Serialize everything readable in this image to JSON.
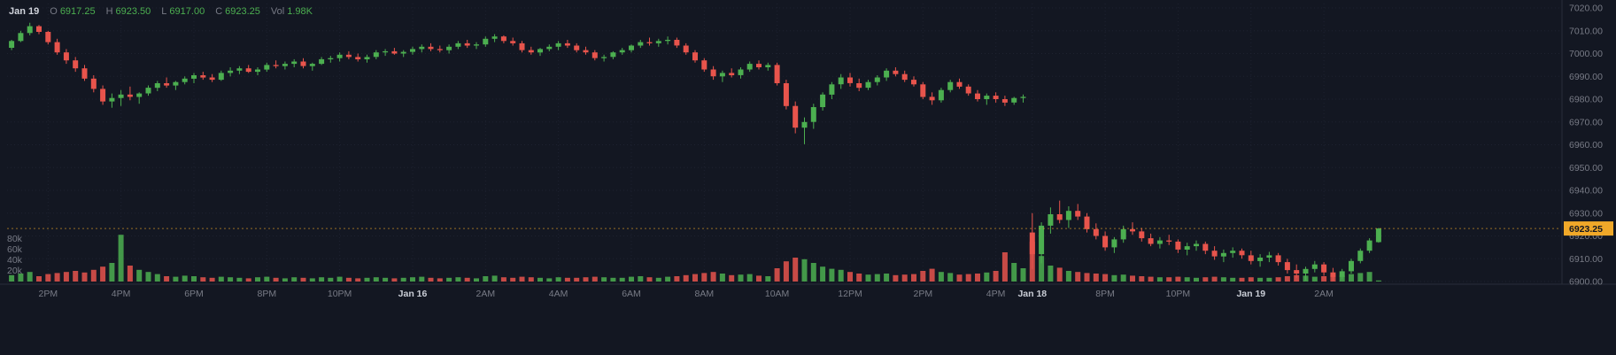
{
  "colors": {
    "bg": "#131722",
    "up": "#4caf50",
    "down": "#e8544c",
    "grid": "#1e2230",
    "axis_text": "#787b86",
    "date_text": "#c9cdd6",
    "separator": "#2a2e39",
    "last_price_bg": "#f0a829",
    "last_price_text": "#131722"
  },
  "legend": {
    "date": "Jan 19",
    "open_label": "O",
    "open_value": "6917.25",
    "high_label": "H",
    "high_value": "6923.50",
    "low_label": "L",
    "low_value": "6917.00",
    "close_label": "C",
    "close_value": "6923.25",
    "vol_label": "Vol",
    "vol_value": "1.98K"
  },
  "price_axis": {
    "ticks": [
      "7020.00",
      "7010.00",
      "7000.00",
      "6990.00",
      "6980.00",
      "6970.00",
      "6960.00",
      "6950.00",
      "6940.00",
      "6930.00",
      "6920.00",
      "6910.00",
      "6900.00"
    ],
    "last_price_label": "6923.25",
    "last_price_value": 6923.25
  },
  "volume_axis": {
    "ticks": [
      {
        "label": "80k",
        "value": 80
      },
      {
        "label": "60k",
        "value": 60
      },
      {
        "label": "40k",
        "value": 40
      },
      {
        "label": "20k",
        "value": 20
      }
    ]
  },
  "chart_data": {
    "type": "candlestick",
    "title": "",
    "ylim": [
      6900,
      7020
    ],
    "volume_unit": "thousands",
    "columns": [
      "open",
      "high",
      "low",
      "close",
      "volume_k"
    ],
    "time_labels": [
      {
        "text": "2PM",
        "index": 4,
        "is_date": false
      },
      {
        "text": "4PM",
        "index": 12,
        "is_date": false
      },
      {
        "text": "6PM",
        "index": 20,
        "is_date": false
      },
      {
        "text": "8PM",
        "index": 28,
        "is_date": false
      },
      {
        "text": "10PM",
        "index": 36,
        "is_date": false
      },
      {
        "text": "Jan 16",
        "index": 44,
        "is_date": true
      },
      {
        "text": "2AM",
        "index": 52,
        "is_date": false
      },
      {
        "text": "4AM",
        "index": 60,
        "is_date": false
      },
      {
        "text": "6AM",
        "index": 68,
        "is_date": false
      },
      {
        "text": "8AM",
        "index": 76,
        "is_date": false
      },
      {
        "text": "10AM",
        "index": 84,
        "is_date": false
      },
      {
        "text": "12PM",
        "index": 92,
        "is_date": false
      },
      {
        "text": "2PM",
        "index": 100,
        "is_date": false
      },
      {
        "text": "4PM",
        "index": 108,
        "is_date": false
      },
      {
        "text": "Jan 18",
        "index": 112,
        "is_date": true
      },
      {
        "text": "8PM",
        "index": 120,
        "is_date": false
      },
      {
        "text": "10PM",
        "index": 128,
        "is_date": false
      },
      {
        "text": "Jan 19",
        "index": 136,
        "is_date": true
      },
      {
        "text": "2AM",
        "index": 144,
        "is_date": false
      }
    ],
    "candles": [
      [
        7002.5,
        7006,
        7001.5,
        7005.5,
        12
      ],
      [
        7005.5,
        7010,
        7005,
        7009,
        15
      ],
      [
        7009,
        7013.5,
        7008,
        7012,
        18
      ],
      [
        7012,
        7012.5,
        7008.5,
        7009.5,
        10
      ],
      [
        7009.5,
        7010,
        7004,
        7005,
        14
      ],
      [
        7005,
        7006.5,
        6999.5,
        7000.5,
        16
      ],
      [
        7000.5,
        7002,
        6995.5,
        6997,
        18
      ],
      [
        6997,
        6998.5,
        6992,
        6993.5,
        20
      ],
      [
        6993.5,
        6995,
        6988,
        6989,
        17
      ],
      [
        6989,
        6990.5,
        6983,
        6984.5,
        22
      ],
      [
        6984.5,
        6986,
        6977.5,
        6979,
        28
      ],
      [
        6979,
        6982.5,
        6976.25,
        6980.5,
        35
      ],
      [
        6980.5,
        6984,
        6977,
        6982,
        88
      ],
      [
        6982,
        6985.5,
        6979.5,
        6981,
        30
      ],
      [
        6981,
        6983,
        6978,
        6982.5,
        22
      ],
      [
        6982.5,
        6986,
        6981.5,
        6985,
        18
      ],
      [
        6985,
        6988,
        6983.5,
        6987,
        14
      ],
      [
        6987,
        6989.5,
        6985,
        6986,
        10
      ],
      [
        6986,
        6988,
        6984,
        6987.5,
        9
      ],
      [
        6987.5,
        6990,
        6986.5,
        6989,
        11
      ],
      [
        6989,
        6991.5,
        6987,
        6990.5,
        10
      ],
      [
        6990.5,
        6992,
        6988.5,
        6989.5,
        8
      ],
      [
        6989.5,
        6991,
        6987.5,
        6988.5,
        7
      ],
      [
        6988.5,
        6992.5,
        6988,
        6991.5,
        9
      ],
      [
        6991.5,
        6994,
        6990,
        6992.5,
        8
      ],
      [
        6992.5,
        6994.5,
        6991,
        6993.5,
        7
      ],
      [
        6993.5,
        6995,
        6991.5,
        6992,
        6
      ],
      [
        6992,
        6994,
        6990.5,
        6993,
        8
      ],
      [
        6993,
        6996,
        6992,
        6995,
        9
      ],
      [
        6995,
        6997,
        6993.5,
        6994.5,
        7
      ],
      [
        6994.5,
        6996.5,
        6993,
        6995.5,
        6
      ],
      [
        6995.5,
        6997.5,
        6994,
        6996.5,
        8
      ],
      [
        6996.5,
        6998,
        6993.5,
        6994.5,
        7
      ],
      [
        6994.5,
        6996,
        6992.5,
        6995.5,
        6
      ],
      [
        6995.5,
        6998.5,
        6995,
        6997.5,
        8
      ],
      [
        6997.5,
        6999,
        6996,
        6998,
        7
      ],
      [
        6998,
        7000.5,
        6996.5,
        6999.5,
        9
      ],
      [
        6999.5,
        7001,
        6997.5,
        6998.5,
        7
      ],
      [
        6998.5,
        7000,
        6996.5,
        6997.5,
        6
      ],
      [
        6997.5,
        6999.5,
        6996,
        6998.5,
        7
      ],
      [
        6998.5,
        7001.5,
        6997.5,
        7000.5,
        8
      ],
      [
        7000.5,
        7002,
        6999,
        7001,
        7
      ],
      [
        7001,
        7002.5,
        6999.5,
        7000,
        6
      ],
      [
        7000,
        7001.5,
        6998.5,
        7000.75,
        7
      ],
      [
        7000.75,
        7003,
        6999.5,
        7002,
        8
      ],
      [
        7002,
        7004,
        7000.5,
        7003,
        9
      ],
      [
        7003,
        7004.5,
        7001,
        7002,
        7
      ],
      [
        7002,
        7003.5,
        7000.5,
        7001.5,
        6
      ],
      [
        7001.5,
        7004,
        7000,
        7003,
        7
      ],
      [
        7003,
        7005.5,
        7002,
        7004.5,
        8
      ],
      [
        7004.5,
        7006,
        7002.5,
        7003.5,
        7
      ],
      [
        7003.5,
        7005,
        7002,
        7004,
        6
      ],
      [
        7004,
        7007.5,
        7003,
        7006.5,
        10
      ],
      [
        7006.5,
        7008.5,
        7005,
        7007.5,
        11
      ],
      [
        7007.5,
        7008,
        7004.5,
        7005.5,
        8
      ],
      [
        7005.5,
        7007,
        7003.5,
        7004.5,
        7
      ],
      [
        7004.5,
        7005.5,
        7000.5,
        7001.5,
        9
      ],
      [
        7001.5,
        7003,
        6999.5,
        7000.5,
        8
      ],
      [
        7000.5,
        7002.5,
        6999,
        7002,
        7
      ],
      [
        7002,
        7004,
        7001,
        7003,
        6
      ],
      [
        7003,
        7005.5,
        7001.5,
        7004.5,
        8
      ],
      [
        7004.5,
        7006,
        7002.5,
        7003.5,
        7
      ],
      [
        7003.5,
        7004.5,
        7000.5,
        7001.5,
        7
      ],
      [
        7001.5,
        7003,
        6999.5,
        7000.5,
        8
      ],
      [
        7000.5,
        7001.5,
        6997,
        6998,
        9
      ],
      [
        6998,
        6999.5,
        6996.5,
        6998.5,
        8
      ],
      [
        6998.5,
        7001,
        6997.5,
        7000.5,
        7
      ],
      [
        7000.5,
        7002.5,
        6999.5,
        7001.5,
        7
      ],
      [
        7001.5,
        7004,
        7000.5,
        7003.5,
        9
      ],
      [
        7003.5,
        7006,
        7002.5,
        7005,
        10
      ],
      [
        7005,
        7007,
        7003.5,
        7004.5,
        8
      ],
      [
        7004.5,
        7006.5,
        7003,
        7005.5,
        7
      ],
      [
        7005.5,
        7007.5,
        7004,
        7006,
        9
      ],
      [
        7006,
        7007,
        7002.5,
        7003.5,
        10
      ],
      [
        7003.5,
        7004.5,
        6999.5,
        7000.5,
        12
      ],
      [
        7000.5,
        7001.5,
        6996,
        6997,
        14
      ],
      [
        6997,
        6998,
        6992,
        6993,
        16
      ],
      [
        6993,
        6994.5,
        6988.5,
        6990,
        18
      ],
      [
        6990,
        6992.5,
        6987.5,
        6991.5,
        15
      ],
      [
        6991.5,
        6993.5,
        6989.5,
        6990.5,
        12
      ],
      [
        6990.5,
        6994,
        6989,
        6993,
        13
      ],
      [
        6993,
        6996.5,
        6992,
        6995.5,
        14
      ],
      [
        6995.5,
        6997,
        6993,
        6994,
        11
      ],
      [
        6994,
        6996,
        6992.5,
        6995,
        10
      ],
      [
        6995,
        6996,
        6986,
        6987,
        25
      ],
      [
        6987,
        6988.5,
        6975.5,
        6977,
        38
      ],
      [
        6977,
        6979,
        6965,
        6967.5,
        45
      ],
      [
        6967.5,
        6972,
        6960.25,
        6970,
        42
      ],
      [
        6970,
        6978,
        6967,
        6976.5,
        35
      ],
      [
        6976.5,
        6983,
        6975,
        6982,
        28
      ],
      [
        6982,
        6987.5,
        6980,
        6986.5,
        24
      ],
      [
        6986.5,
        6991,
        6984.5,
        6989.5,
        22
      ],
      [
        6989.5,
        6991.5,
        6985.5,
        6987,
        18
      ],
      [
        6987,
        6989,
        6983.5,
        6985,
        15
      ],
      [
        6985,
        6988.5,
        6984,
        6987.5,
        13
      ],
      [
        6987.5,
        6990.5,
        6986,
        6989.5,
        14
      ],
      [
        6989.5,
        6993.5,
        6988,
        6992.5,
        15
      ],
      [
        6992.5,
        6994,
        6990,
        6991,
        12
      ],
      [
        6991,
        6992.5,
        6987.5,
        6988.5,
        13
      ],
      [
        6988.5,
        6990,
        6985.5,
        6986.5,
        14
      ],
      [
        6986.5,
        6987.5,
        6980,
        6981,
        20
      ],
      [
        6981,
        6983,
        6977.5,
        6979.5,
        24
      ],
      [
        6979.5,
        6985,
        6978.5,
        6984,
        18
      ],
      [
        6984,
        6988.5,
        6983,
        6987.5,
        16
      ],
      [
        6987.5,
        6989,
        6984.5,
        6985.5,
        13
      ],
      [
        6985.5,
        6986.5,
        6981.5,
        6982.5,
        14
      ],
      [
        6982.5,
        6984,
        6979,
        6980,
        15
      ],
      [
        6980,
        6982.5,
        6977.5,
        6981.5,
        17
      ],
      [
        6981.5,
        6983,
        6978.5,
        6980,
        20
      ],
      [
        6980,
        6981.5,
        6977,
        6978.5,
        55
      ],
      [
        6978.5,
        6981,
        6977.5,
        6980.5,
        35
      ],
      [
        6980.5,
        6982,
        6978.5,
        6981,
        25
      ],
      [
        6921.5,
        6930,
        6905.5,
        6912,
        75
      ],
      [
        6912,
        6926,
        6908,
        6924.5,
        48
      ],
      [
        6924.5,
        6932.5,
        6921,
        6929.5,
        30
      ],
      [
        6929.5,
        6935.5,
        6925.5,
        6927,
        26
      ],
      [
        6927,
        6933,
        6923.5,
        6931,
        20
      ],
      [
        6931,
        6934,
        6927,
        6928.5,
        18
      ],
      [
        6928.5,
        6930,
        6921.5,
        6923,
        16
      ],
      [
        6923,
        6925.5,
        6918.5,
        6920,
        15
      ],
      [
        6920,
        6922,
        6913.5,
        6915,
        14
      ],
      [
        6915,
        6919.5,
        6912.5,
        6918.5,
        12
      ],
      [
        6918.5,
        6924.5,
        6917,
        6923,
        13
      ],
      [
        6923,
        6926,
        6920.5,
        6922,
        11
      ],
      [
        6922,
        6923.5,
        6917.5,
        6919,
        10
      ],
      [
        6919,
        6921,
        6915.5,
        6916.5,
        9
      ],
      [
        6916.5,
        6919.5,
        6914.5,
        6918,
        8
      ],
      [
        6918,
        6920.5,
        6916,
        6917.5,
        8
      ],
      [
        6917.5,
        6918.5,
        6912.5,
        6914,
        9
      ],
      [
        6914,
        6917,
        6911.5,
        6915.5,
        8
      ],
      [
        6915.5,
        6918,
        6913.5,
        6916.5,
        7
      ],
      [
        6916.5,
        6917.5,
        6912,
        6913.5,
        8
      ],
      [
        6913.5,
        6915.5,
        6909.5,
        6911,
        9
      ],
      [
        6911,
        6914,
        6908.5,
        6912.5,
        8
      ],
      [
        6912.5,
        6915,
        6910.5,
        6913.5,
        7
      ],
      [
        6913.5,
        6914.5,
        6910,
        6911.5,
        7
      ],
      [
        6911.5,
        6913.5,
        6907.5,
        6909,
        8
      ],
      [
        6909,
        6912,
        6906.5,
        6910.5,
        7
      ],
      [
        6910.5,
        6913,
        6908.5,
        6911.5,
        7
      ],
      [
        6911.5,
        6912.5,
        6907,
        6908.5,
        8
      ],
      [
        6908.5,
        6910,
        6903.5,
        6905,
        10
      ],
      [
        6905,
        6907.5,
        6901.5,
        6903.5,
        12
      ],
      [
        6903.5,
        6906.5,
        6900.5,
        6905.5,
        11
      ],
      [
        6905.5,
        6909,
        6904,
        6907.5,
        9
      ],
      [
        6907.5,
        6908.5,
        6902.5,
        6904,
        10
      ],
      [
        6904,
        6906,
        6900.25,
        6902,
        13
      ],
      [
        6902,
        6905.5,
        6901,
        6904.5,
        11
      ],
      [
        6904.5,
        6910,
        6903.5,
        6909,
        14
      ],
      [
        6909,
        6914.5,
        6908,
        6913.5,
        16
      ],
      [
        6913.5,
        6919,
        6912.5,
        6918,
        18
      ],
      [
        6917.25,
        6923.5,
        6917,
        6923.25,
        1.98
      ]
    ]
  }
}
